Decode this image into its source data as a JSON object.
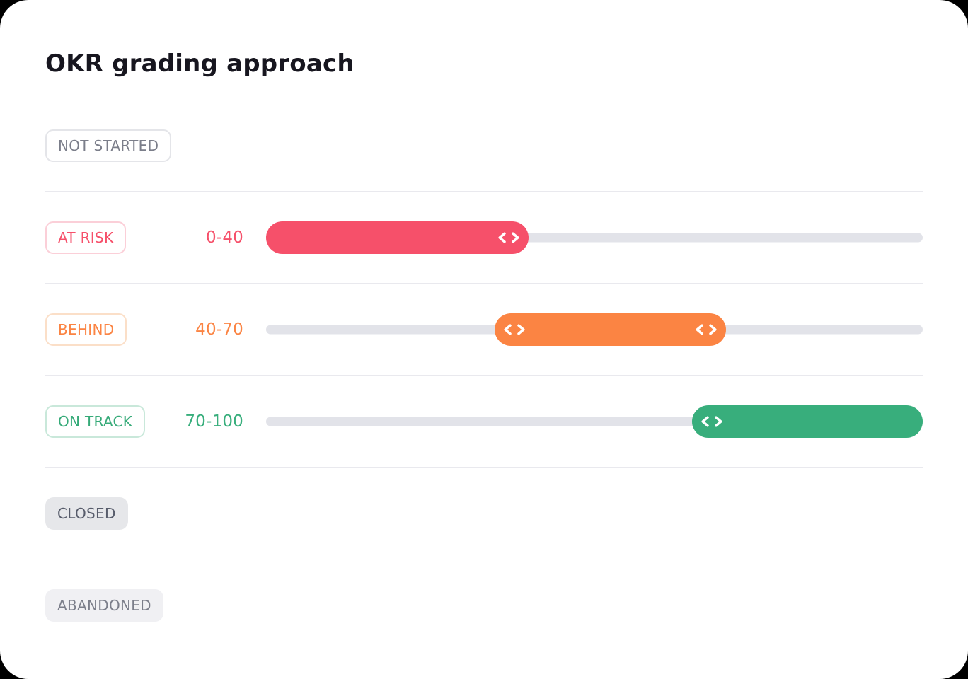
{
  "page": {
    "title": "OKR grading approach",
    "outer_background": "#000000",
    "card_background": "#ffffff",
    "divider_color": "#E9E9EE",
    "track_color": "#E2E3E9"
  },
  "rows": [
    {
      "badge": "NOT STARTED",
      "badge_style": "outline",
      "badge_text_color": "#7B7E8A",
      "badge_border_color": "#E4E5E9",
      "badge_bg": "#FFFFFF"
    },
    {
      "badge": "AT RISK",
      "badge_style": "outline",
      "badge_text_color": "#F6506A",
      "badge_border_color": "#FBCFD8",
      "badge_bg": "#FFFFFF",
      "range_label": "0-40",
      "range": [
        0,
        40
      ],
      "color": "#F6506A",
      "handles": [
        "end"
      ]
    },
    {
      "badge": "BEHIND",
      "badge_style": "outline",
      "badge_text_color": "#FB8443",
      "badge_border_color": "#FBDFC8",
      "badge_bg": "#FFFFFF",
      "range_label": "40-70",
      "range": [
        40,
        70
      ],
      "color": "#FB8443",
      "handles": [
        "start",
        "end"
      ]
    },
    {
      "badge": "ON TRACK",
      "badge_style": "outline",
      "badge_text_color": "#35AA78",
      "badge_border_color": "#C9E8DA",
      "badge_bg": "#FFFFFF",
      "range_label": "70-100",
      "range": [
        70,
        100
      ],
      "color": "#38AE7C",
      "handles": [
        "start"
      ]
    },
    {
      "badge": "CLOSED",
      "badge_style": "filled",
      "badge_text_color": "#575C6B",
      "badge_border_color": "transparent",
      "badge_bg": "#E6E7EA"
    },
    {
      "badge": "ABANDONED",
      "badge_style": "filled",
      "badge_text_color": "#7B7E8A",
      "badge_border_color": "transparent",
      "badge_bg": "#F0F0F3"
    }
  ]
}
